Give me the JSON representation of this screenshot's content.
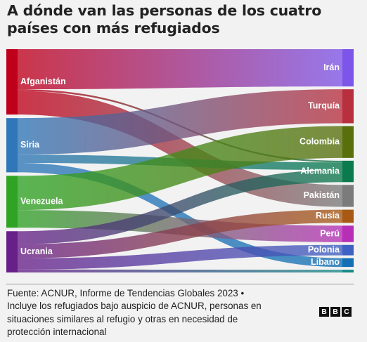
{
  "title": {
    "line1": "A dónde van las personas de los cuatro",
    "line2": "países con más refugiados"
  },
  "chart_data": {
    "type": "sankey",
    "sources": [
      {
        "id": "afg",
        "label": "Afganistán",
        "color": "#c0001a"
      },
      {
        "id": "sir",
        "label": "Siria",
        "color": "#2f77b8"
      },
      {
        "id": "ven",
        "label": "Venezuela",
        "color": "#2fa324"
      },
      {
        "id": "ucr",
        "label": "Ucrania",
        "color": "#682089"
      }
    ],
    "targets": [
      {
        "id": "iran",
        "label": "Irán",
        "color": "#7d55e8"
      },
      {
        "id": "tur",
        "label": "Turquía",
        "color": "#b8303e"
      },
      {
        "id": "col",
        "label": "Colombia",
        "color": "#596f0c"
      },
      {
        "id": "ale",
        "label": "Alemania",
        "color": "#0b7a4c"
      },
      {
        "id": "pak",
        "label": "Pakistán",
        "color": "#7b7b7b"
      },
      {
        "id": "rus",
        "label": "Rusia",
        "color": "#a85a14"
      },
      {
        "id": "per",
        "label": "Perú",
        "color": "#b62fb6"
      },
      {
        "id": "pol",
        "label": "Polonia",
        "color": "#3e61c3"
      },
      {
        "id": "lib",
        "label": "Líbano",
        "color": "#1370b4"
      },
      {
        "id": "other",
        "label": "",
        "color": "#178a86"
      }
    ],
    "flows": [
      {
        "source": "afg",
        "target": "iran",
        "value": 3.4
      },
      {
        "source": "afg",
        "target": "pak",
        "value": 2.0
      },
      {
        "source": "afg",
        "target": "ale",
        "value": 0.15
      },
      {
        "source": "sir",
        "target": "tur",
        "value": 3.1
      },
      {
        "source": "sir",
        "target": "ale",
        "value": 0.7
      },
      {
        "source": "sir",
        "target": "lib",
        "value": 0.8
      },
      {
        "source": "ven",
        "target": "col",
        "value": 2.9
      },
      {
        "source": "ven",
        "target": "per",
        "value": 1.5
      },
      {
        "source": "ucr",
        "target": "rus",
        "value": 1.2
      },
      {
        "source": "ucr",
        "target": "pol",
        "value": 0.95
      },
      {
        "source": "ucr",
        "target": "ale",
        "value": 1.1
      },
      {
        "source": "ucr",
        "target": "other",
        "value": 0.25
      }
    ]
  },
  "footer": {
    "line1": "Fuente: ACNUR, Informe de Tendencias Globales 2023 •",
    "line2": "Incluye los refugiados bajo auspicio de ACNUR, personas en",
    "line3": "situaciones similares al refugio y otras en necesidad de",
    "line4": "protección internacional"
  },
  "logo": {
    "letters": [
      "B",
      "B",
      "C"
    ]
  }
}
